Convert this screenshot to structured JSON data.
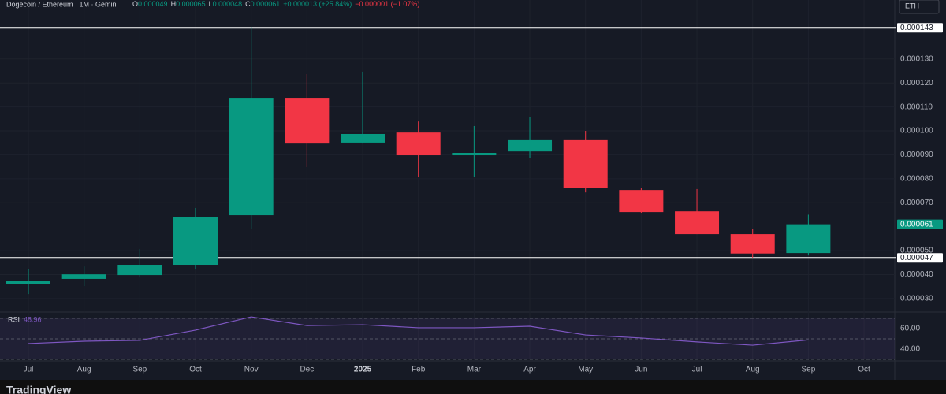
{
  "chart_data": {
    "type": "candlestick",
    "title": "Dogecoin / Ethereum · 1M · Gemini",
    "legend": [
      {
        "key": "O",
        "text": "0.000049"
      },
      {
        "key": "H",
        "text": "0.000065"
      },
      {
        "key": "L",
        "text": "0.000048"
      },
      {
        "key": "C",
        "text": "0.000061"
      },
      {
        "key": "",
        "text": "+0.000013 (+25.84%)"
      },
      {
        "key": "",
        "text": "−0.000001 (−1.07%)"
      }
    ],
    "currency": "ETH",
    "categories": [
      "Jul",
      "Aug",
      "Sep",
      "Oct",
      "Nov",
      "Dec",
      "2025",
      "Feb",
      "Mar",
      "Apr",
      "May",
      "Jun",
      "Jul",
      "Aug",
      "Sep",
      "Oct"
    ],
    "open": [
      3.59e-05,
      3.82e-05,
      3.98e-05,
      4.41e-05,
      6.48e-05,
      0.0001138,
      9.51e-05,
      9.93e-05,
      8.98e-05,
      9.14e-05,
      9.61e-05,
      7.53e-05,
      6.64e-05,
      5.69e-05,
      4.9e-05,
      null
    ],
    "high": [
      4.24e-05,
      4.34e-05,
      5.07e-05,
      6.78e-05,
      0.0001434,
      0.0001237,
      0.0001247,
      0.0001039,
      0.000102,
      0.0001059,
      0.0001,
      7.63e-05,
      7.57e-05,
      5.89e-05,
      6.5e-05,
      null
    ],
    "low": [
      3.19e-05,
      3.52e-05,
      3.88e-05,
      4.21e-05,
      5.89e-05,
      8.49e-05,
      9.47e-05,
      8.09e-05,
      8.09e-05,
      8.85e-05,
      7.43e-05,
      6.58e-05,
      5.69e-05,
      4.7e-05,
      4.8e-05,
      null
    ],
    "close": [
      3.75e-05,
      4.01e-05,
      4.41e-05,
      6.41e-05,
      0.0001138,
      9.47e-05,
      9.87e-05,
      8.98e-05,
      9.08e-05,
      9.61e-05,
      7.63e-05,
      6.61e-05,
      5.69e-05,
      4.88e-05,
      6.1e-05,
      null
    ],
    "up_color": "#089981",
    "down_color": "#f23645",
    "ylim": [
      2.47e-05,
      0.0001546
    ],
    "yticks": [
      {
        "value": 3e-05,
        "label": "0.000030"
      },
      {
        "value": 4e-05,
        "label": "0.000040"
      },
      {
        "value": 5e-05,
        "label": "0.000050"
      },
      {
        "value": 7e-05,
        "label": "0.000070"
      },
      {
        "value": 8e-05,
        "label": "0.000080"
      },
      {
        "value": 9e-05,
        "label": "0.000090"
      },
      {
        "value": 0.0001,
        "label": "0.000100"
      },
      {
        "value": 0.00011,
        "label": "0.000110"
      },
      {
        "value": 0.00012,
        "label": "0.000120"
      },
      {
        "value": 0.00013,
        "label": "0.000130"
      }
    ],
    "hlines": [
      {
        "value": 0.000143,
        "label": "0.000143"
      },
      {
        "value": 4.7e-05,
        "label": "0.000047"
      }
    ],
    "last_price": {
      "value": 6.1e-05,
      "label": "0.000061"
    },
    "grid": true,
    "rsi": {
      "label": "RSI",
      "value": 48.96,
      "color": "#7e57c2",
      "values": [
        45.4,
        47.7,
        48.5,
        58.5,
        71.5,
        63,
        63.8,
        60.8,
        60.8,
        62.3,
        53.8,
        50.8,
        47,
        43.8,
        48.96,
        null
      ],
      "ylim": [
        29.2,
        75.4
      ],
      "yticks": [
        {
          "value": 60,
          "label": "60.00"
        },
        {
          "value": 40,
          "label": "40.00"
        }
      ],
      "bands": [
        70,
        50,
        30
      ]
    },
    "watermark": "TradingView"
  }
}
